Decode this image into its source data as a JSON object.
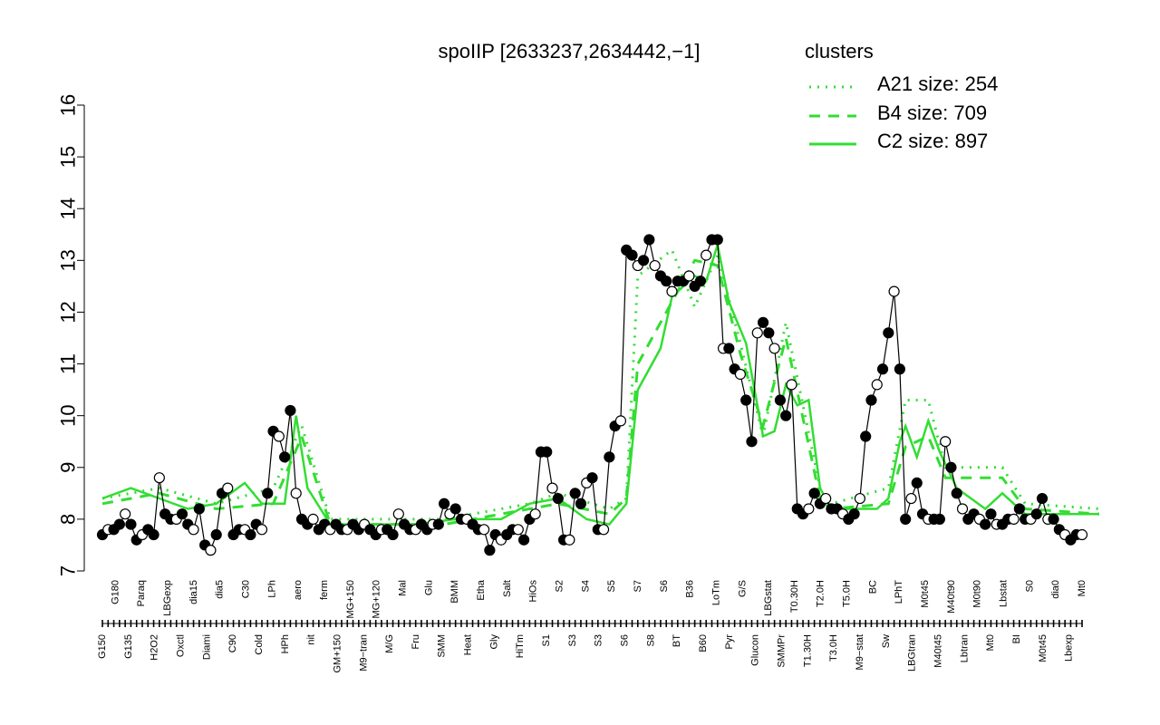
{
  "title": "spoIIP [2633237,2634442,−1]",
  "legend": {
    "title": "clusters",
    "color": "#33dd33",
    "entries": [
      {
        "label": "A21 size: 254",
        "style": "dotted"
      },
      {
        "label": "B4 size: 709",
        "style": "dashed"
      },
      {
        "label": "C2 size: 897",
        "style": "solid"
      }
    ]
  },
  "chart_data": {
    "type": "line",
    "ylim": [
      7,
      16
    ],
    "yticks": [
      7,
      8,
      9,
      10,
      11,
      12,
      13,
      14,
      15,
      16
    ],
    "xlabel": "",
    "ylabel": "",
    "grid": false,
    "x_tick_labels": [
      "G150",
      "G180",
      "G135",
      "Paraq",
      "H2O2",
      "LBGexp",
      "Oxctl",
      "dia15",
      "Diami",
      "dia5",
      "C90",
      "C30",
      "Cold",
      "LPh",
      "HPh",
      "aero",
      "nit",
      "ferm",
      "GM+150",
      "MG+150",
      "M9−tran",
      "MG+120",
      "M/G",
      "Mal",
      "Fru",
      "Glu",
      "SMM",
      "BMM",
      "Heat",
      "Etha",
      "Gly",
      "Salt",
      "HiTm",
      "HiOs",
      "S1",
      "S2",
      "S3",
      "S4",
      "S3",
      "S5",
      "S6",
      "S7",
      "S8",
      "S6",
      "BT",
      "B36",
      "B60",
      "LoTm",
      "Pyr",
      "G/S",
      "Glucon",
      "LBGstat",
      "SMMPr",
      "T0.30H",
      "T1.30H",
      "T2.0H",
      "T3.0H",
      "T5.0H",
      "M9−stat",
      "BC",
      "Sw",
      "LPhT",
      "LBGtran",
      "M0t45",
      "M40t45",
      "M40t90",
      "Lbtran",
      "M0t90",
      "Mt0",
      "Lbstat",
      "BI",
      "S0",
      "M0t45",
      "dia0",
      "Lbexp",
      "Mt0"
    ],
    "sample_values": [
      7.7,
      7.8,
      7.8,
      7.9,
      8.1,
      7.9,
      7.6,
      7.7,
      7.8,
      7.7,
      8.8,
      8.1,
      8.0,
      8.0,
      8.1,
      7.9,
      7.8,
      8.2,
      7.5,
      7.4,
      7.7,
      8.5,
      8.6,
      7.7,
      7.8,
      7.8,
      7.7,
      7.9,
      7.8,
      8.5,
      9.7,
      9.6,
      9.2,
      10.1,
      8.5,
      8.0,
      7.9,
      8.0,
      7.8,
      7.9,
      7.8,
      7.9,
      7.8,
      7.8,
      7.9,
      7.8,
      7.9,
      7.8,
      7.7,
      7.8,
      7.8,
      7.7,
      8.1,
      7.9,
      7.8,
      7.8,
      7.9,
      7.8,
      7.9,
      7.9,
      8.3,
      8.1,
      8.2,
      8.0,
      8.0,
      7.9,
      7.8,
      7.8,
      7.4,
      7.7,
      7.6,
      7.7,
      7.8,
      7.8,
      7.6,
      8.0,
      8.1,
      9.3,
      9.3,
      8.6,
      8.4,
      7.6,
      7.6,
      8.5,
      8.3,
      8.7,
      8.8,
      7.8,
      7.8,
      9.2,
      9.8,
      9.9,
      13.2,
      13.1,
      12.9,
      13.0,
      13.4,
      12.9,
      12.7,
      12.6,
      12.4,
      12.6,
      12.6,
      12.7,
      12.5,
      12.6,
      13.1,
      13.4,
      13.4,
      11.3,
      11.3,
      10.9,
      10.8,
      10.3,
      9.5,
      11.6,
      11.8,
      11.6,
      11.3,
      10.3,
      10.0,
      10.6,
      8.2,
      8.1,
      8.2,
      8.5,
      8.3,
      8.4,
      8.2,
      8.2,
      8.1,
      8.0,
      8.1,
      8.4,
      9.6,
      10.3,
      10.6,
      10.9,
      11.6,
      12.4,
      10.9,
      8.0,
      8.4,
      8.7,
      8.1,
      8.0,
      8.0,
      8.0,
      9.5,
      9.0,
      8.5,
      8.2,
      8.0,
      8.1,
      8.0,
      7.9,
      8.1,
      7.9,
      7.9,
      8.0,
      8.0,
      8.2,
      8.0,
      8.0,
      8.1,
      8.4,
      8.0,
      8.0,
      7.8,
      7.7,
      7.6,
      7.7,
      7.7
    ],
    "clusters": [
      {
        "name": "A21 size: 254",
        "style": "dotted",
        "knots": [
          [
            0,
            8.4
          ],
          [
            10,
            8.6
          ],
          [
            20,
            8.3
          ],
          [
            30,
            8.6
          ],
          [
            35,
            9.8
          ],
          [
            40,
            8.0
          ],
          [
            60,
            8.0
          ],
          [
            75,
            8.3
          ],
          [
            80,
            8.5
          ],
          [
            89,
            8.2
          ],
          [
            92,
            8.4
          ],
          [
            94,
            12.7
          ],
          [
            100,
            13.2
          ],
          [
            104,
            12.1
          ],
          [
            108,
            13.1
          ],
          [
            112,
            11.4
          ],
          [
            116,
            9.6
          ],
          [
            120,
            11.8
          ],
          [
            126,
            8.6
          ],
          [
            128,
            8.3
          ],
          [
            138,
            8.6
          ],
          [
            141,
            10.3
          ],
          [
            145,
            10.3
          ],
          [
            148,
            9.0
          ],
          [
            158,
            9.0
          ],
          [
            162,
            8.3
          ],
          [
            175,
            8.2
          ]
        ]
      },
      {
        "name": "B4 size: 709",
        "style": "dashed",
        "knots": [
          [
            0,
            8.3
          ],
          [
            10,
            8.5
          ],
          [
            20,
            8.2
          ],
          [
            30,
            8.3
          ],
          [
            35,
            9.6
          ],
          [
            40,
            7.9
          ],
          [
            60,
            7.9
          ],
          [
            75,
            8.2
          ],
          [
            80,
            8.3
          ],
          [
            89,
            8.1
          ],
          [
            92,
            8.4
          ],
          [
            94,
            11.0
          ],
          [
            100,
            12.2
          ],
          [
            104,
            13.0
          ],
          [
            108,
            12.9
          ],
          [
            112,
            11.2
          ],
          [
            116,
            9.8
          ],
          [
            120,
            11.5
          ],
          [
            126,
            8.4
          ],
          [
            128,
            8.2
          ],
          [
            138,
            8.3
          ],
          [
            141,
            9.4
          ],
          [
            145,
            9.6
          ],
          [
            148,
            8.8
          ],
          [
            158,
            8.8
          ],
          [
            162,
            8.2
          ],
          [
            175,
            8.1
          ]
        ]
      },
      {
        "name": "C2 size: 897",
        "style": "solid",
        "knots": [
          [
            0,
            8.4
          ],
          [
            5,
            8.6
          ],
          [
            10,
            8.4
          ],
          [
            15,
            8.2
          ],
          [
            20,
            8.3
          ],
          [
            25,
            8.7
          ],
          [
            28,
            8.3
          ],
          [
            32,
            8.3
          ],
          [
            34,
            10.0
          ],
          [
            36,
            8.6
          ],
          [
            40,
            7.9
          ],
          [
            55,
            7.9
          ],
          [
            62,
            8.0
          ],
          [
            70,
            8.0
          ],
          [
            75,
            8.3
          ],
          [
            80,
            8.4
          ],
          [
            85,
            8.0
          ],
          [
            89,
            7.9
          ],
          [
            92,
            8.3
          ],
          [
            94,
            10.5
          ],
          [
            98,
            11.3
          ],
          [
            100,
            12.3
          ],
          [
            104,
            12.7
          ],
          [
            106,
            12.6
          ],
          [
            108,
            13.3
          ],
          [
            110,
            12.2
          ],
          [
            113,
            11.4
          ],
          [
            116,
            9.6
          ],
          [
            118,
            9.7
          ],
          [
            120,
            10.6
          ],
          [
            122,
            10.2
          ],
          [
            124,
            10.3
          ],
          [
            126,
            8.6
          ],
          [
            128,
            8.2
          ],
          [
            136,
            8.2
          ],
          [
            138,
            8.4
          ],
          [
            140,
            9.5
          ],
          [
            141,
            9.8
          ],
          [
            143,
            9.2
          ],
          [
            145,
            9.9
          ],
          [
            147,
            9.3
          ],
          [
            150,
            8.6
          ],
          [
            155,
            8.2
          ],
          [
            158,
            8.5
          ],
          [
            162,
            8.1
          ],
          [
            170,
            8.1
          ],
          [
            175,
            8.1
          ]
        ]
      }
    ]
  }
}
